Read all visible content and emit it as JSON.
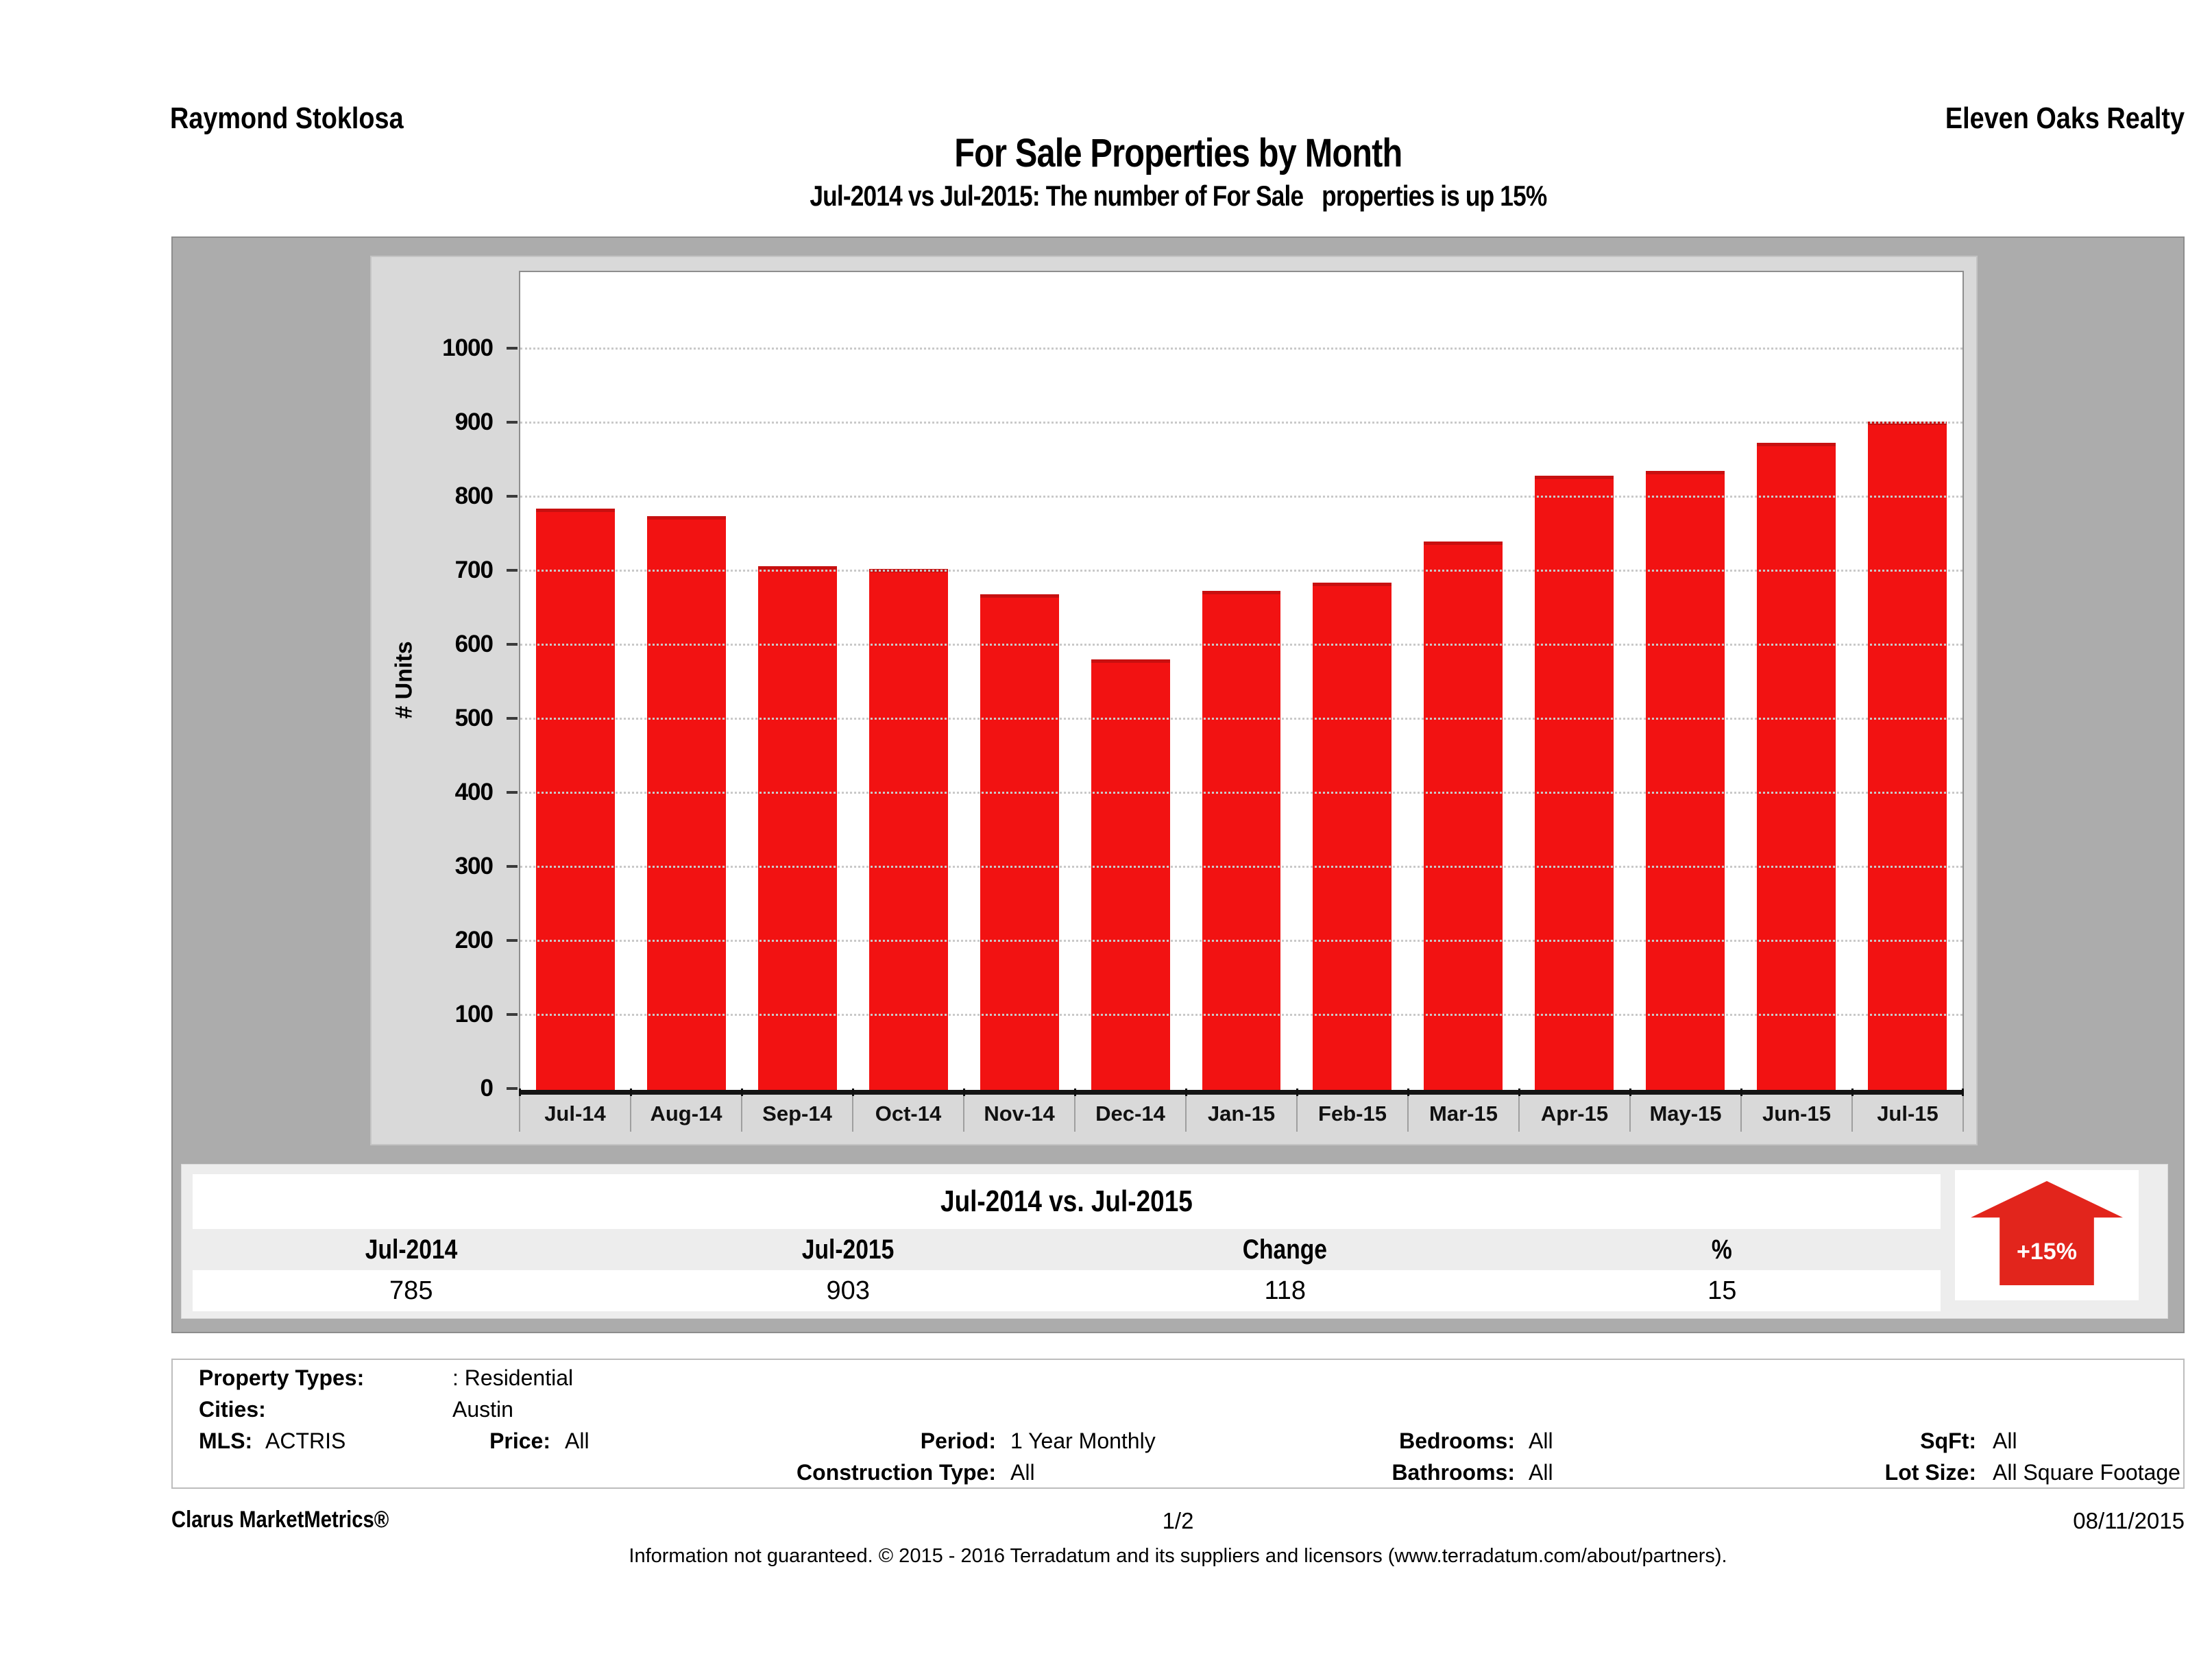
{
  "header": {
    "agent_name": "Raymond Stoklosa",
    "company_name": "Eleven Oaks Realty",
    "title": "For Sale Properties by Month",
    "subtitle": "Jul-2014 vs Jul-2015: The number of For Sale   properties is up 15%"
  },
  "chart_data": {
    "type": "bar",
    "title": "For Sale Properties by Month",
    "categories": [
      "Jul-14",
      "Aug-14",
      "Sep-14",
      "Oct-14",
      "Nov-14",
      "Dec-14",
      "Jan-15",
      "Feb-15",
      "Mar-15",
      "Apr-15",
      "May-15",
      "Jun-15",
      "Jul-15"
    ],
    "values": [
      785,
      775,
      708,
      704,
      670,
      582,
      674,
      685,
      741,
      830,
      836,
      874,
      903
    ],
    "series_name": "For Sale Properties",
    "xlabel": "",
    "ylabel": "# Units",
    "ylim": [
      0,
      1105
    ],
    "yticks": [
      0,
      100,
      200,
      300,
      400,
      500,
      600,
      700,
      800,
      900,
      1000
    ],
    "grid": true,
    "legend_position": "none",
    "bar_color": "#f21212",
    "bar_edge_color": "#c81010"
  },
  "summary_table": {
    "title": "Jul-2014 vs. Jul-2015",
    "columns": [
      "Jul-2014",
      "Jul-2015",
      "Change",
      "%"
    ],
    "values": [
      "785",
      "903",
      "118",
      "15"
    ]
  },
  "change_badge": {
    "label": "+15%",
    "direction": "up",
    "color": "#e2251c"
  },
  "filters": {
    "property_types_label": "Property Types:",
    "property_types_value": ": Residential",
    "cities_label": "Cities:",
    "cities_value": "Austin",
    "mls_label": "MLS:",
    "mls_value": "ACTRIS",
    "price_label": "Price:",
    "price_value": "All",
    "period_label": "Period:",
    "period_value": "1 Year Monthly",
    "construction_label": "Construction Type:",
    "construction_value": "All",
    "bedrooms_label": "Bedrooms:",
    "bedrooms_value": "All",
    "bathrooms_label": "Bathrooms:",
    "bathrooms_value": "All",
    "sqft_label": "SqFt:",
    "sqft_value": "All",
    "lot_size_label": "Lot Size:",
    "lot_size_value": "All Square Footage"
  },
  "footer": {
    "product": "Clarus MarketMetrics®",
    "page": "1/2",
    "date": "08/11/2015",
    "disclaimer": "Information not guaranteed. © 2015 - 2016 Terradatum and its suppliers and licensors (www.terradatum.com/about/partners)."
  }
}
